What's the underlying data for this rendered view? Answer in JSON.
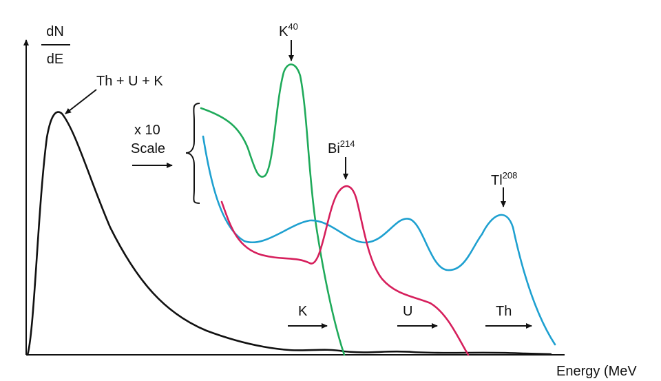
{
  "axis": {
    "y_label_top": "dN",
    "y_label_bottom": "dE",
    "x_label": "Energy (MeV"
  },
  "annotations": {
    "total": "Th + U + K",
    "k_peak": "K",
    "k_peak_sup": "40",
    "bi_peak": "Bi",
    "bi_peak_sup": "214",
    "tl_peak": "Tl",
    "tl_peak_sup": "208",
    "scale_top": "x 10",
    "scale_bottom": "Scale",
    "window_k": "K",
    "window_u": "U",
    "window_th": "Th"
  }
}
